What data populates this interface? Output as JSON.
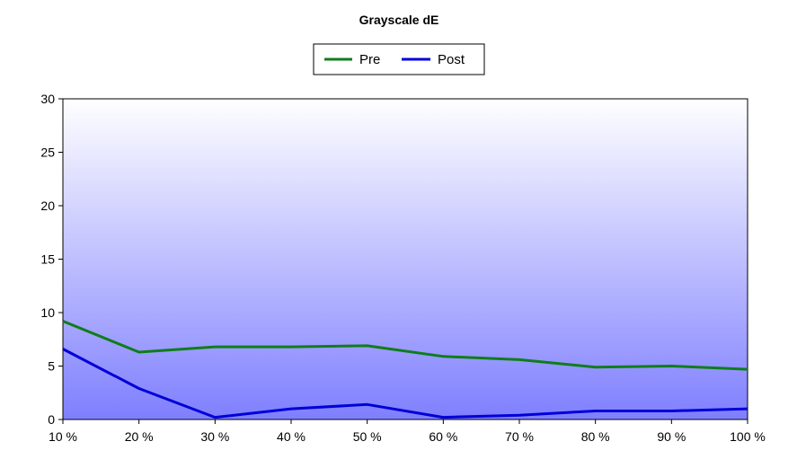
{
  "chart_data": {
    "type": "line",
    "title": "Grayscale dE",
    "xlabel": "",
    "ylabel": "",
    "categories": [
      "10 %",
      "20 %",
      "30 %",
      "40 %",
      "50 %",
      "60 %",
      "70 %",
      "80 %",
      "90 %",
      "100 %"
    ],
    "ylim": [
      0,
      30
    ],
    "yticks": [
      "0",
      "5",
      "10",
      "15",
      "20",
      "25",
      "30"
    ],
    "grid": false,
    "legend_position": "top-center",
    "series": [
      {
        "name": "Pre",
        "color": "#0f7d1a",
        "values": [
          9.2,
          6.3,
          6.8,
          6.8,
          6.9,
          5.9,
          5.6,
          4.9,
          5.0,
          4.7
        ]
      },
      {
        "name": "Post",
        "color": "#0000d8",
        "values": [
          6.6,
          2.9,
          0.2,
          1.0,
          1.4,
          0.2,
          0.4,
          0.8,
          0.8,
          1.0
        ]
      }
    ],
    "background_gradient": [
      "#ffffff",
      "#7f7fff"
    ]
  }
}
